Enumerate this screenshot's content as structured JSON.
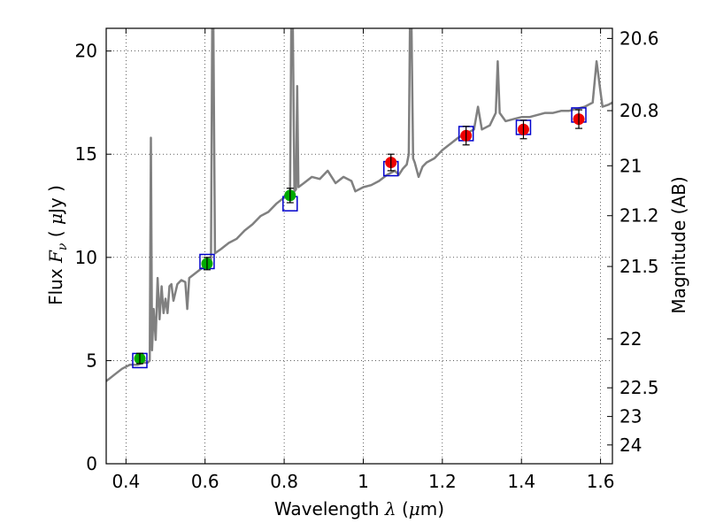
{
  "chart_data": {
    "type": "scatter",
    "title": "",
    "xlabel": {
      "prefix": "Wavelength  ",
      "symbol": "λ",
      "unit_open": " (",
      "unit_mu": "μ",
      "unit_rest": "m)"
    },
    "ylabel": {
      "prefix": "Flux  ",
      "symbol": "F",
      "subscript": "ν",
      "unit_open": "  ( ",
      "unit_mu": "μ",
      "unit_rest": "Jy )"
    },
    "y2label": "Magnitude (AB)",
    "xlim": [
      0.35,
      1.63
    ],
    "ylim": [
      0,
      21.1
    ],
    "grid": true,
    "x_ticks": [
      0.4,
      0.6,
      0.8,
      1.0,
      1.2,
      1.4,
      1.6
    ],
    "x_tick_labels": [
      "0.4",
      "0.6",
      "0.8",
      "1",
      "1.2",
      "1.4",
      "1.6"
    ],
    "y_ticks": [
      0,
      5,
      10,
      15,
      20
    ],
    "y_tick_labels": [
      "0",
      "5",
      "10",
      "15",
      "20"
    ],
    "y2_ticks": [
      {
        "flux": 20.61,
        "label": "20.6"
      },
      {
        "flux": 17.11,
        "label": "20.8"
      },
      {
        "flux": 14.44,
        "label": "21"
      },
      {
        "flux": 12.02,
        "label": "21.2"
      },
      {
        "flux": 9.56,
        "label": "21.5"
      },
      {
        "flux": 6.05,
        "label": "22"
      },
      {
        "flux": 3.68,
        "label": "22.5"
      },
      {
        "flux": 2.29,
        "label": "23"
      },
      {
        "flux": 0.91,
        "label": "24"
      }
    ],
    "model_spectrum": {
      "color": "#808080",
      "points": [
        [
          0.35,
          4.0
        ],
        [
          0.37,
          4.3
        ],
        [
          0.39,
          4.6
        ],
        [
          0.41,
          4.8
        ],
        [
          0.43,
          4.8
        ],
        [
          0.445,
          4.9
        ],
        [
          0.455,
          4.9
        ],
        [
          0.46,
          5.0
        ],
        [
          0.463,
          15.8
        ],
        [
          0.466,
          5.5
        ],
        [
          0.47,
          7.5
        ],
        [
          0.475,
          6.0
        ],
        [
          0.48,
          9.0
        ],
        [
          0.485,
          7.0
        ],
        [
          0.49,
          8.6
        ],
        [
          0.495,
          7.3
        ],
        [
          0.5,
          8.0
        ],
        [
          0.505,
          7.3
        ],
        [
          0.51,
          8.6
        ],
        [
          0.515,
          8.7
        ],
        [
          0.52,
          7.9
        ],
        [
          0.53,
          8.7
        ],
        [
          0.54,
          8.9
        ],
        [
          0.55,
          8.8
        ],
        [
          0.555,
          7.5
        ],
        [
          0.56,
          9.0
        ],
        [
          0.58,
          9.3
        ],
        [
          0.6,
          9.6
        ],
        [
          0.61,
          9.8
        ],
        [
          0.615,
          9.9
        ],
        [
          0.618,
          21.1
        ],
        [
          0.621,
          21.1
        ],
        [
          0.625,
          10.2
        ],
        [
          0.64,
          10.4
        ],
        [
          0.66,
          10.7
        ],
        [
          0.68,
          10.9
        ],
        [
          0.7,
          11.3
        ],
        [
          0.72,
          11.6
        ],
        [
          0.74,
          12.0
        ],
        [
          0.76,
          12.2
        ],
        [
          0.78,
          12.6
        ],
        [
          0.8,
          12.9
        ],
        [
          0.81,
          13.0
        ],
        [
          0.815,
          13.3
        ],
        [
          0.818,
          21.1
        ],
        [
          0.822,
          21.1
        ],
        [
          0.826,
          13.2
        ],
        [
          0.83,
          13.3
        ],
        [
          0.833,
          18.3
        ],
        [
          0.836,
          13.4
        ],
        [
          0.85,
          13.6
        ],
        [
          0.87,
          13.9
        ],
        [
          0.89,
          13.8
        ],
        [
          0.91,
          14.2
        ],
        [
          0.93,
          13.6
        ],
        [
          0.95,
          13.9
        ],
        [
          0.97,
          13.7
        ],
        [
          0.98,
          13.2
        ],
        [
          1.0,
          13.4
        ],
        [
          1.02,
          13.5
        ],
        [
          1.04,
          13.7
        ],
        [
          1.06,
          14.0
        ],
        [
          1.08,
          14.2
        ],
        [
          1.09,
          14.0
        ],
        [
          1.1,
          14.3
        ],
        [
          1.11,
          14.5
        ],
        [
          1.115,
          15.0
        ],
        [
          1.118,
          21.1
        ],
        [
          1.122,
          21.1
        ],
        [
          1.126,
          14.8
        ],
        [
          1.13,
          14.6
        ],
        [
          1.14,
          13.9
        ],
        [
          1.15,
          14.4
        ],
        [
          1.16,
          14.6
        ],
        [
          1.18,
          14.8
        ],
        [
          1.2,
          15.2
        ],
        [
          1.22,
          15.5
        ],
        [
          1.24,
          15.8
        ],
        [
          1.26,
          16.0
        ],
        [
          1.28,
          16.2
        ],
        [
          1.29,
          17.3
        ],
        [
          1.3,
          16.2
        ],
        [
          1.32,
          16.4
        ],
        [
          1.335,
          17.0
        ],
        [
          1.34,
          19.5
        ],
        [
          1.345,
          17.0
        ],
        [
          1.36,
          16.6
        ],
        [
          1.38,
          16.7
        ],
        [
          1.4,
          16.8
        ],
        [
          1.42,
          16.8
        ],
        [
          1.44,
          16.9
        ],
        [
          1.46,
          17.0
        ],
        [
          1.48,
          17.0
        ],
        [
          1.5,
          17.1
        ],
        [
          1.52,
          17.1
        ],
        [
          1.54,
          17.2
        ],
        [
          1.56,
          17.3
        ],
        [
          1.58,
          17.5
        ],
        [
          1.59,
          19.5
        ],
        [
          1.6,
          18.0
        ],
        [
          1.605,
          17.3
        ],
        [
          1.62,
          17.4
        ],
        [
          1.63,
          17.5
        ]
      ]
    },
    "model_boxes": {
      "color": "#0000cc",
      "points": [
        [
          0.435,
          5.0
        ],
        [
          0.605,
          9.8
        ],
        [
          0.815,
          12.6
        ],
        [
          1.07,
          14.3
        ],
        [
          1.26,
          16.0
        ],
        [
          1.405,
          16.3
        ],
        [
          1.545,
          16.9
        ]
      ]
    },
    "observed_green": {
      "color": "#00aa00",
      "points": [
        {
          "x": 0.435,
          "y": 5.1,
          "err": 0.25
        },
        {
          "x": 0.605,
          "y": 9.7,
          "err": 0.3
        },
        {
          "x": 0.815,
          "y": 13.0,
          "err": 0.35
        }
      ]
    },
    "observed_red": {
      "color": "#ee0000",
      "points": [
        {
          "x": 1.07,
          "y": 14.6,
          "err": 0.4
        },
        {
          "x": 1.26,
          "y": 15.9,
          "err": 0.45
        },
        {
          "x": 1.405,
          "y": 16.2,
          "err": 0.45
        },
        {
          "x": 1.545,
          "y": 16.7,
          "err": 0.45
        }
      ]
    }
  }
}
